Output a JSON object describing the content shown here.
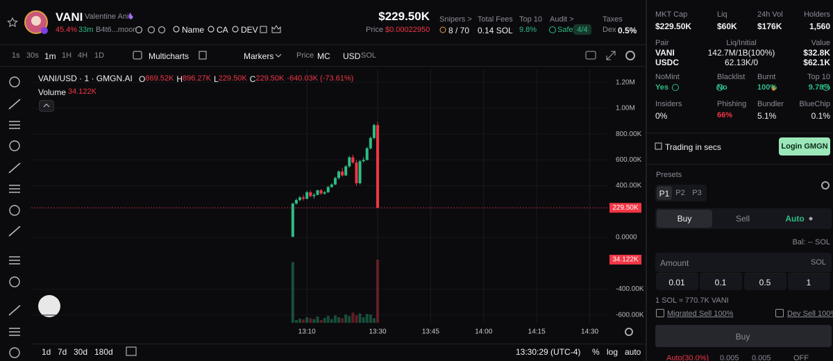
{
  "header": {
    "symbol": "VANI",
    "name": "Valentine Ani",
    "change": "45.4%",
    "age": "33m",
    "address": "B4t6...moon",
    "links": [
      "Name",
      "CA",
      "DEV"
    ],
    "market_cap": "$229.50K",
    "price_label": "Price",
    "price": "$0.00022950",
    "stats": [
      {
        "label": "Snipers >",
        "value": "8 / 70"
      },
      {
        "label": "Total Fees",
        "value": "0.14 SOL"
      },
      {
        "label": "Top 10",
        "value": "9.8%"
      },
      {
        "label": "Audit >",
        "value": "Safe",
        "badge": "4/4"
      },
      {
        "label": "Taxes",
        "value": "Dex",
        "badge": "0.5%"
      }
    ]
  },
  "toolbar": {
    "intervals": [
      "1s",
      "30s",
      "1m",
      "1H",
      "4H",
      "1D"
    ],
    "multicharts": "Multicharts",
    "markers": "Markers",
    "price": "Price",
    "mc": "MC",
    "usd": "USD",
    "sol": "SOL"
  },
  "chart_data": {
    "type": "candlestick",
    "title": "VANI/USD · 1 · GMGN.AI",
    "legend": [
      "O",
      "869.52K",
      "H",
      "896.27K",
      "L",
      "229.50K",
      "C",
      "229.50K",
      "-640.03K (-73.61%)"
    ],
    "volume_title": "Volume",
    "up_color": "#2ebd85",
    "down_color": "#f23645",
    "grid": true,
    "x": [
      "13:06",
      "13:07",
      "13:08",
      "13:09",
      "13:10",
      "13:11",
      "13:12",
      "13:13",
      "13:14",
      "13:15",
      "13:16",
      "13:17",
      "13:18",
      "13:19",
      "13:20",
      "13:21",
      "13:22",
      "13:23",
      "13:24",
      "13:25",
      "13:26",
      "13:27",
      "13:28",
      "13:29",
      "13:30"
    ],
    "open": [
      5000,
      262000,
      290000,
      310000,
      300000,
      350000,
      320000,
      330000,
      365000,
      340000,
      350000,
      390000,
      410000,
      460000,
      510000,
      480000,
      550000,
      620000,
      580000,
      420000,
      590000,
      600000,
      690000,
      770000,
      869520
    ],
    "high": [
      270000,
      300000,
      320000,
      330000,
      360000,
      365000,
      345000,
      370000,
      375000,
      360000,
      400000,
      420000,
      470000,
      520000,
      540000,
      560000,
      630000,
      640000,
      600000,
      600000,
      620000,
      700000,
      780000,
      880000,
      896270
    ],
    "low": [
      5000,
      255000,
      280000,
      285000,
      295000,
      310000,
      300000,
      325000,
      330000,
      330000,
      345000,
      385000,
      405000,
      450000,
      470000,
      475000,
      540000,
      570000,
      400000,
      410000,
      580000,
      595000,
      680000,
      760000,
      229500
    ],
    "close": [
      262000,
      290000,
      310000,
      300000,
      350000,
      320000,
      330000,
      365000,
      340000,
      350000,
      390000,
      410000,
      460000,
      510000,
      480000,
      550000,
      620000,
      580000,
      420000,
      590000,
      600000,
      690000,
      770000,
      869520,
      229500
    ],
    "volume": [
      32800,
      1500,
      2200,
      1800,
      3000,
      2500,
      2000,
      3400,
      1500,
      2600,
      3800,
      2000,
      4000,
      3000,
      2500,
      4500,
      3600,
      5500,
      4200,
      5000,
      3000,
      4800,
      4500,
      2500,
      34122
    ],
    "last_price": {
      "value": 229500,
      "label": "229.50K"
    },
    "last_volume": {
      "value": 34122,
      "label": "34.122K"
    },
    "xlim": [
      "11:52",
      "14:35"
    ],
    "xticks": [
      "13:10",
      "13:30",
      "13:45",
      "14:00",
      "14:15",
      "14:30"
    ],
    "ylim": [
      -660000,
      1300000
    ],
    "yticks": [
      {
        "value": 1200000,
        "label": "1.20M"
      },
      {
        "value": 1000000,
        "label": "1.00M"
      },
      {
        "value": 800000,
        "label": "800.00K"
      },
      {
        "value": 600000,
        "label": "600.00K"
      },
      {
        "value": 400000,
        "label": "400.00K"
      },
      {
        "value": 0,
        "label": "0.0000"
      },
      {
        "value": -400000,
        "label": "-400.00K"
      },
      {
        "value": -600000,
        "label": "-600.00K"
      }
    ]
  },
  "chart_footer": {
    "ranges": [
      "1d",
      "7d",
      "30d",
      "180d"
    ],
    "clock": "13:30:29 (UTC-4)",
    "options": [
      "%",
      "log",
      "auto"
    ]
  },
  "token_info": {
    "summary": [
      {
        "label": "MKT Cap",
        "value": "$229.50K"
      },
      {
        "label": "Liq",
        "value": "$60K"
      },
      {
        "label": "24h Vol",
        "value": "$176K"
      },
      {
        "label": "Holders",
        "value": "1,560"
      }
    ],
    "pair_header": [
      "Pair",
      "Liq/Initial",
      "Value"
    ],
    "pairs": [
      [
        "VANI",
        "142.7M/1B(100%)",
        "$32.8K"
      ],
      [
        "USDC",
        "62.13K/0",
        "$62.1K"
      ]
    ],
    "security": [
      {
        "label": "NoMint",
        "value": "Yes"
      },
      {
        "label": "Blacklist",
        "value": "No"
      },
      {
        "label": "Burnt",
        "value": "100%"
      },
      {
        "label": "Top 10",
        "value": "9.78%"
      }
    ],
    "holders": [
      {
        "label": "Insiders",
        "value": "0%"
      },
      {
        "label": "Phishing",
        "value": "66%"
      },
      {
        "label": "Bundler",
        "value": "5.1%"
      },
      {
        "label": "BlueChip",
        "value": "0.1%"
      }
    ]
  },
  "trade_panel": {
    "promo": "Trading in secs",
    "login": "Login GMGN",
    "presets_title": "Presets",
    "presets": [
      "P1",
      "P2",
      "P3"
    ],
    "tabs": [
      "Buy",
      "Sell",
      "Auto"
    ],
    "balance": "Bal: -- SOL",
    "amount_placeholder": "Amount",
    "amount_unit": "SOL",
    "quick_amounts": [
      "0.01",
      "0.1",
      "0.5",
      "1"
    ],
    "rate": "1 SOL ≈ 770.7K VANI",
    "options": [
      "Migrated Sell 100%",
      "Dev Sell 100%"
    ],
    "submit": "Buy",
    "footer": [
      "Auto(30.0%)",
      "0.005",
      "0.005",
      "OFF"
    ]
  }
}
